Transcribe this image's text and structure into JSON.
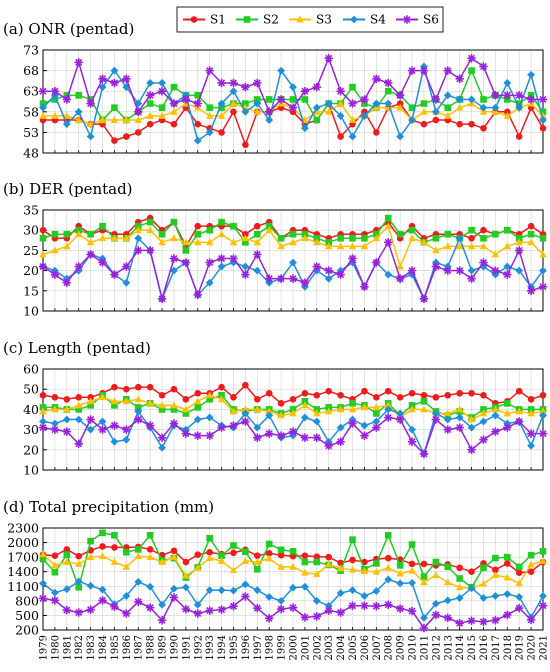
{
  "colors": {
    "S1": "#ee1c1c",
    "S2": "#22cc22",
    "S3": "#ffc000",
    "S4": "#1f8fdc",
    "S6": "#9922dd"
  },
  "legend": [
    {
      "key": "S1",
      "label": "S1",
      "marker": "circle"
    },
    {
      "key": "S2",
      "label": "S2",
      "marker": "square"
    },
    {
      "key": "S3",
      "label": "S3",
      "marker": "triangle"
    },
    {
      "key": "S4",
      "label": "S4",
      "marker": "diamond"
    },
    {
      "key": "S6",
      "label": "S6",
      "marker": "star"
    }
  ],
  "x_labels": [
    "1979",
    "1980",
    "1981",
    "1982",
    "1983",
    "1984",
    "1985",
    "1986",
    "1987",
    "1988",
    "1989",
    "1990",
    "1991",
    "1992",
    "1993",
    "1994",
    "1995",
    "1996",
    "1997",
    "1998",
    "1999",
    "2000",
    "2001",
    "2002",
    "2003",
    "2004",
    "2005",
    "2006",
    "2007",
    "2008",
    "2009",
    "2010",
    "2011",
    "2012",
    "2013",
    "2014",
    "2015",
    "2016",
    "2017",
    "2018",
    "2019",
    "2020",
    "2021"
  ],
  "chart_data": [
    {
      "type": "line",
      "title": "(a) ONR (pentad)",
      "ylim": [
        48,
        73
      ],
      "yticks": [
        48,
        53,
        58,
        63,
        68,
        73
      ],
      "grid": true,
      "series": [
        {
          "name": "S1",
          "values": [
            56,
            56,
            56,
            56,
            55,
            55,
            51,
            52,
            53,
            55,
            56,
            55,
            59,
            55,
            54,
            53,
            58,
            50,
            58,
            58,
            59,
            58,
            55,
            56,
            60,
            52,
            55,
            58,
            53,
            59,
            60,
            56,
            55,
            56,
            56,
            55,
            55,
            54,
            58,
            58,
            52,
            59,
            54
          ]
        },
        {
          "name": "S2",
          "values": [
            60,
            61,
            62,
            62,
            61,
            56,
            59,
            56,
            58,
            60,
            59,
            64,
            62,
            62,
            59,
            59,
            60,
            60,
            61,
            61,
            61,
            61,
            61,
            56,
            60,
            60,
            64,
            60,
            59,
            63,
            62,
            59,
            60,
            61,
            59,
            61,
            68,
            61,
            62,
            61,
            60,
            62,
            58
          ]
        },
        {
          "name": "S3",
          "values": [
            57,
            57,
            57,
            56,
            55,
            56,
            56,
            56,
            56,
            57,
            57,
            58,
            60,
            59,
            57,
            57,
            60,
            59,
            58,
            58,
            60,
            59,
            56,
            58,
            58,
            60,
            56,
            57,
            59,
            59,
            59,
            56,
            58,
            58,
            57,
            59,
            60,
            58,
            58,
            57,
            59,
            60,
            57
          ]
        },
        {
          "name": "S4",
          "values": [
            59,
            62,
            55,
            58,
            52,
            64,
            68,
            64,
            60,
            65,
            65,
            60,
            62,
            51,
            53,
            60,
            63,
            58,
            60,
            56,
            68,
            64,
            54,
            59,
            60,
            57,
            52,
            57,
            60,
            60,
            52,
            56,
            69,
            58,
            62,
            61,
            61,
            59,
            59,
            65,
            59,
            67,
            56
          ]
        },
        {
          "name": "S6",
          "values": [
            63,
            63,
            61,
            70,
            60,
            66,
            65,
            66,
            58,
            62,
            63,
            60,
            61,
            60,
            68,
            65,
            65,
            64,
            65,
            58,
            61,
            59,
            63,
            64,
            71,
            63,
            60,
            61,
            66,
            65,
            62,
            68,
            68,
            61,
            68,
            66,
            71,
            69,
            62,
            62,
            62,
            61,
            61
          ]
        }
      ]
    },
    {
      "type": "line",
      "title": "(b) DER (pentad)",
      "ylim": [
        10,
        35
      ],
      "yticks": [
        10,
        15,
        20,
        25,
        30,
        35
      ],
      "grid": true,
      "series": [
        {
          "name": "S1",
          "values": [
            30,
            28,
            28,
            31,
            29,
            30,
            29,
            29,
            32,
            33,
            30,
            32,
            26,
            31,
            31,
            31,
            31,
            29,
            31,
            32,
            28,
            30,
            30,
            29,
            28,
            29,
            29,
            29,
            30,
            32,
            28,
            31,
            28,
            29,
            29,
            29,
            28,
            30,
            29,
            30,
            29,
            31,
            29
          ]
        },
        {
          "name": "S2",
          "values": [
            28,
            29,
            29,
            30,
            29,
            31,
            28,
            28,
            31,
            32,
            29,
            32,
            25,
            29,
            30,
            32,
            31,
            27,
            29,
            31,
            28,
            29,
            29,
            28,
            27,
            28,
            28,
            28,
            29,
            33,
            29,
            30,
            27,
            28,
            29,
            28,
            30,
            28,
            29,
            30,
            28,
            29,
            28
          ]
        },
        {
          "name": "S3",
          "values": [
            24,
            25,
            26,
            29,
            27,
            28,
            28,
            28,
            30,
            30,
            27,
            28,
            27,
            27,
            27,
            29,
            27,
            28,
            27,
            30,
            26,
            27,
            28,
            27,
            26,
            26,
            26,
            26,
            28,
            31,
            21,
            28,
            27,
            25,
            26,
            26,
            26,
            26,
            24,
            26,
            27,
            27,
            24
          ]
        },
        {
          "name": "S4",
          "values": [
            21,
            20,
            18,
            20,
            24,
            23,
            19,
            17,
            28,
            25,
            13,
            20,
            22,
            14,
            17,
            21,
            22,
            21,
            20,
            17,
            18,
            22,
            16,
            20,
            18,
            20,
            22,
            16,
            22,
            19,
            18,
            19,
            13,
            22,
            21,
            28,
            20,
            21,
            19,
            21,
            20,
            16,
            20
          ]
        },
        {
          "name": "S6",
          "values": [
            21,
            19,
            17,
            21,
            24,
            22,
            19,
            21,
            25,
            25,
            13,
            23,
            22,
            14,
            22,
            23,
            23,
            19,
            24,
            18,
            18,
            18,
            17,
            21,
            20,
            19,
            23,
            16,
            22,
            27,
            18,
            20,
            13,
            21,
            20,
            20,
            18,
            22,
            20,
            19,
            25,
            15,
            16
          ]
        }
      ]
    },
    {
      "type": "line",
      "title": "(c) Length (pentad)",
      "ylim": [
        10,
        60
      ],
      "yticks": [
        10,
        20,
        30,
        40,
        50,
        60
      ],
      "grid": true,
      "series": [
        {
          "name": "S1",
          "values": [
            47,
            46,
            45,
            46,
            46,
            48,
            51,
            50,
            51,
            51,
            47,
            50,
            45,
            48,
            48,
            51,
            46,
            52,
            45,
            48,
            43,
            45,
            48,
            47,
            49,
            47,
            45,
            49,
            46,
            49,
            46,
            48,
            47,
            46,
            47,
            48,
            48,
            47,
            43,
            44,
            49,
            45,
            47
          ]
        },
        {
          "name": "S2",
          "values": [
            41,
            41,
            40,
            40,
            42,
            47,
            42,
            45,
            41,
            43,
            40,
            40,
            38,
            41,
            45,
            47,
            40,
            39,
            40,
            40,
            38,
            40,
            44,
            40,
            41,
            41,
            43,
            42,
            38,
            43,
            37,
            42,
            44,
            39,
            37,
            39,
            36,
            40,
            41,
            43,
            40,
            40,
            40
          ]
        },
        {
          "name": "S3",
          "values": [
            39,
            40,
            40,
            42,
            44,
            46,
            44,
            44,
            45,
            43,
            42,
            42,
            40,
            44,
            47,
            45,
            39,
            40,
            40,
            39,
            37,
            38,
            42,
            38,
            39,
            40,
            40,
            41,
            41,
            42,
            36,
            40,
            40,
            38,
            38,
            40,
            35,
            38,
            40,
            38,
            39,
            38,
            39
          ]
        },
        {
          "name": "S4",
          "values": [
            34,
            33,
            35,
            35,
            30,
            34,
            24,
            25,
            39,
            31,
            21,
            32,
            30,
            35,
            36,
            32,
            31,
            38,
            31,
            37,
            26,
            27,
            36,
            34,
            24,
            31,
            35,
            32,
            34,
            40,
            38,
            30,
            18,
            38,
            35,
            36,
            31,
            34,
            37,
            33,
            34,
            22,
            37
          ]
        },
        {
          "name": "S6",
          "values": [
            31,
            30,
            29,
            23,
            35,
            30,
            32,
            30,
            35,
            32,
            26,
            33,
            28,
            27,
            27,
            31,
            32,
            34,
            26,
            28,
            27,
            29,
            26,
            26,
            22,
            24,
            33,
            27,
            31,
            36,
            35,
            24,
            18,
            35,
            30,
            31,
            20,
            25,
            29,
            31,
            34,
            28,
            28
          ]
        }
      ]
    },
    {
      "type": "line",
      "title": "(d) Total precipitation (mm)",
      "ylim": [
        200,
        2300
      ],
      "yticks": [
        200,
        500,
        800,
        1100,
        1400,
        1700,
        2000,
        2300
      ],
      "grid": true,
      "series": [
        {
          "name": "S1",
          "values": [
            1750,
            1730,
            1860,
            1720,
            1840,
            1920,
            1900,
            1900,
            1910,
            1860,
            1740,
            1830,
            1600,
            1750,
            1800,
            1760,
            1790,
            1850,
            1730,
            1780,
            1740,
            1720,
            1730,
            1710,
            1700,
            1580,
            1640,
            1600,
            1660,
            1680,
            1650,
            1560,
            1560,
            1530,
            1550,
            1480,
            1400,
            1570,
            1440,
            1570,
            1380,
            1400,
            1600
          ]
        },
        {
          "name": "S2",
          "values": [
            1660,
            1390,
            1750,
            1080,
            2030,
            2200,
            2150,
            1800,
            1860,
            2150,
            1630,
            1680,
            1280,
            1490,
            2090,
            1730,
            1940,
            1810,
            1450,
            1970,
            1850,
            1820,
            1600,
            1600,
            1540,
            1420,
            2060,
            1450,
            1570,
            2150,
            1530,
            1960,
            1300,
            1600,
            1500,
            1260,
            1080,
            1480,
            1680,
            1700,
            1500,
            1740,
            1820
          ]
        },
        {
          "name": "S3",
          "values": [
            1760,
            1530,
            1600,
            1560,
            1700,
            1720,
            1600,
            1500,
            1720,
            1700,
            1600,
            1700,
            1320,
            1480,
            1680,
            1620,
            1430,
            1620,
            1600,
            1670,
            1500,
            1500,
            1380,
            1350,
            1550,
            1470,
            1440,
            1410,
            1400,
            1480,
            1360,
            1420,
            1180,
            1330,
            1180,
            1080,
            1060,
            1150,
            1330,
            1280,
            1160,
            1550,
            1620
          ]
        },
        {
          "name": "S4",
          "values": [
            1160,
            970,
            1040,
            1200,
            1110,
            1030,
            730,
            900,
            1190,
            1090,
            720,
            1050,
            1080,
            720,
            1020,
            1020,
            1010,
            1140,
            1020,
            880,
            800,
            1070,
            1090,
            800,
            700,
            960,
            1020,
            900,
            1000,
            1240,
            1160,
            1170,
            450,
            740,
            810,
            860,
            1060,
            860,
            900,
            940,
            880,
            460,
            900
          ]
        },
        {
          "name": "S6",
          "values": [
            850,
            810,
            610,
            560,
            620,
            810,
            680,
            540,
            780,
            660,
            400,
            870,
            630,
            540,
            600,
            620,
            690,
            890,
            650,
            440,
            630,
            660,
            460,
            480,
            600,
            560,
            700,
            700,
            690,
            720,
            640,
            590,
            240,
            510,
            450,
            340,
            390,
            370,
            400,
            510,
            650,
            410,
            700
          ]
        }
      ]
    }
  ]
}
